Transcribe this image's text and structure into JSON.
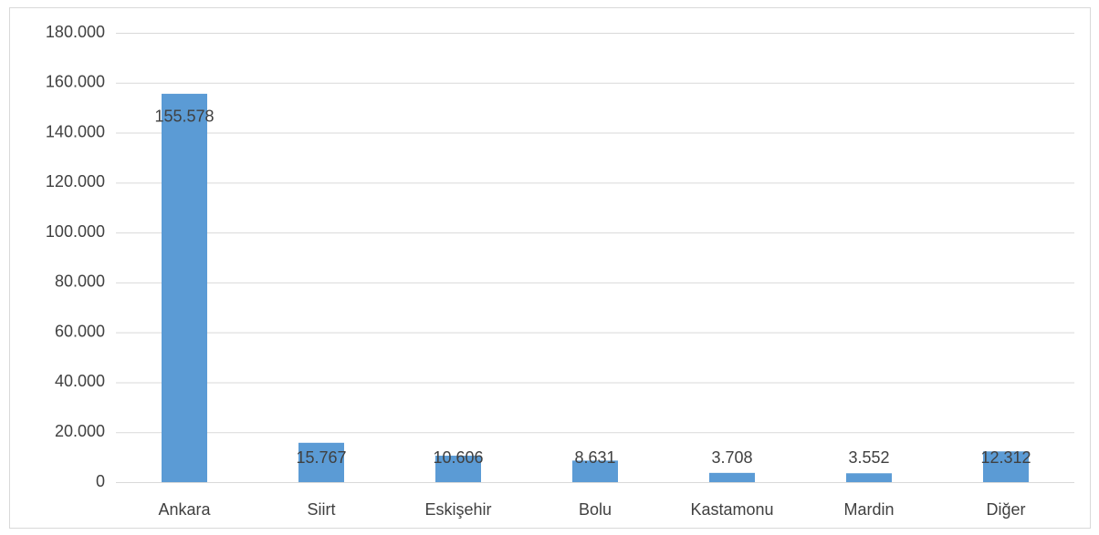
{
  "chart_data": {
    "type": "bar",
    "categories": [
      "Ankara",
      "Siirt",
      "Eskişehir",
      "Bolu",
      "Kastamonu",
      "Mardin",
      "Diğer"
    ],
    "values": [
      155578,
      15767,
      10606,
      8631,
      3708,
      3552,
      12312
    ],
    "value_labels": [
      "155.578",
      "15.767",
      "10.606",
      "8.631",
      "3.708",
      "3.552",
      "12.312"
    ],
    "color": "#5b9bd5",
    "ylim": [
      0,
      180000
    ],
    "yticks": [
      0,
      {
        "value": 20000,
        "label": "20.000"
      },
      {
        "value": 40000,
        "label": "40.000"
      },
      {
        "value": 60000,
        "label": "60.000"
      },
      {
        "value": 80000,
        "label": "80.000"
      },
      {
        "value": 100000,
        "label": "100.000"
      },
      {
        "value": 120000,
        "label": "120.000"
      },
      {
        "value": 140000,
        "label": "140.000"
      },
      {
        "value": 160000,
        "label": "160.000"
      },
      {
        "value": 180000,
        "label": "180.000"
      }
    ],
    "grid": true
  }
}
